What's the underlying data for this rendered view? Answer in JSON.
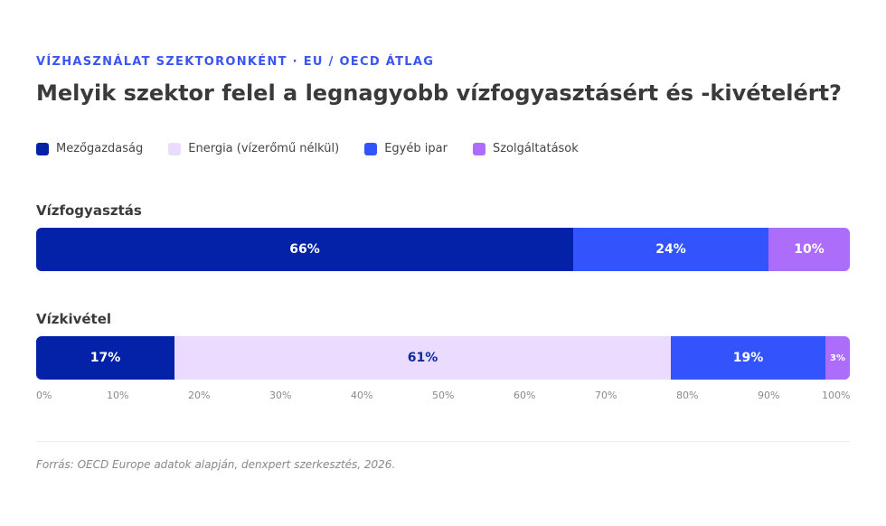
{
  "header": {
    "eyebrow": "VÍZHASZNÁLAT SZEKTORONKÉNT · EU / OECD ÁTLAG",
    "title": "Melyik szektor felel a legnagyobb vízfogyasztásért és -kivételért?"
  },
  "colors": {
    "agriculture": "#0322a8",
    "energy": "#ebdcff",
    "industry": "#3354fd",
    "services": "#ad6dfb",
    "label_light": "#ffffff",
    "label_dark": "#0d2aa0"
  },
  "chart_data": {
    "type": "bar",
    "orientation": "horizontal",
    "stacked": true,
    "categories": [
      "Vízfogyasztás",
      "Vízkivétel"
    ],
    "series": [
      {
        "name": "Mezőgazdaság",
        "values": [
          66,
          17
        ]
      },
      {
        "name": "Energia (vízerőmű nélkül)",
        "values": [
          0,
          61
        ]
      },
      {
        "name": "Egyéb ipar",
        "values": [
          24,
          19
        ]
      },
      {
        "name": "Szolgáltatások",
        "values": [
          10,
          3
        ]
      }
    ],
    "unit": "%",
    "xlim": [
      0,
      100
    ],
    "x_ticks": [
      "0%",
      "10%",
      "20%",
      "30%",
      "40%",
      "50%",
      "60%",
      "70%",
      "80%",
      "90%",
      "100%"
    ],
    "legend_position": "top-left",
    "grid": false
  },
  "footer": {
    "source": "Forrás: OECD Europe adatok alapján, denxpert szerkesztés, 2026."
  }
}
